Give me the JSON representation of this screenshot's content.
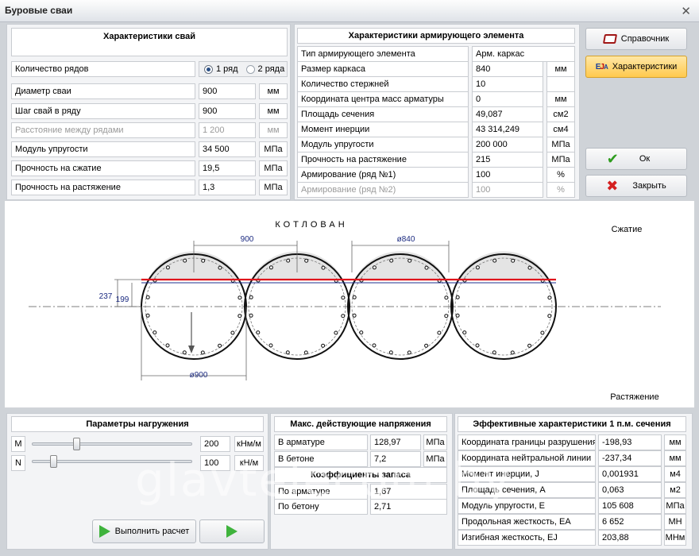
{
  "window": {
    "title": "Буровые сваи"
  },
  "pile": {
    "header": "Характеристики свай",
    "rows_count": {
      "label": "Количество рядов",
      "opt1": "1 ряд",
      "opt2": "2 ряда"
    },
    "diameter": {
      "label": "Диаметр сваи",
      "value": "900",
      "unit": "мм"
    },
    "step": {
      "label": "Шаг свай в ряду",
      "value": "900",
      "unit": "мм"
    },
    "row_distance": {
      "label": "Расстояние между рядами",
      "value": "1 200",
      "unit": "мм"
    },
    "modulus": {
      "label": "Модуль упругости",
      "value": "34 500",
      "unit": "МПа"
    },
    "compression": {
      "label": "Прочность на сжатие",
      "value": "19,5",
      "unit": "МПа"
    },
    "tension": {
      "label": "Прочность на растяжение",
      "value": "1,3",
      "unit": "МПа"
    }
  },
  "rebar": {
    "header": "Характеристики армирующего элемента",
    "type": {
      "label": "Тип армирующего элемента",
      "value": "Арм. каркас"
    },
    "cage_size": {
      "label": "Размер каркаса",
      "value": "840",
      "unit": "мм"
    },
    "bars": {
      "label": "Количество стержней",
      "value": "10",
      "unit": ""
    },
    "centroid": {
      "label": "Координата центра масс арматуры",
      "value": "0",
      "unit": "мм"
    },
    "area": {
      "label": "Площадь сечения",
      "value": "49,087",
      "unit": "см2"
    },
    "inertia": {
      "label": "Момент инерции",
      "value": "43 314,249",
      "unit": "см4"
    },
    "modulus": {
      "label": "Модуль упругости",
      "value": "200 000",
      "unit": "МПа"
    },
    "tension": {
      "label": "Прочность на растяжение",
      "value": "215",
      "unit": "МПа"
    },
    "reinf1": {
      "label": "Армирование (ряд №1)",
      "value": "100",
      "unit": "%"
    },
    "reinf2": {
      "label": "Армирование (ряд №2)",
      "value": "100",
      "unit": "%"
    }
  },
  "buttons": {
    "reference": "Справочник",
    "characteristics": "Характеристики",
    "ok": "Ок",
    "close": "Закрыть",
    "run": "Выполнить расчет"
  },
  "drawing": {
    "title": "КОТЛОВАН",
    "compression": "Сжатие",
    "tension": "Растяжение",
    "dim_step": "900",
    "dim_cage": "ø840",
    "dim_dia": "ø900",
    "dim_237": "237",
    "dim_199": "199"
  },
  "loads": {
    "header": "Параметры нагружения",
    "m": {
      "label": "M",
      "value": "200",
      "unit": "кНм/м",
      "slider": 0.27
    },
    "n": {
      "label": "N",
      "value": "100",
      "unit": "кН/м",
      "slider": 0.12
    }
  },
  "stress": {
    "header": "Макс. действующие напряжения",
    "rebar": {
      "label": "В арматуре",
      "value": "128,97",
      "unit": "МПа"
    },
    "concrete": {
      "label": "В бетоне",
      "value": "7,2",
      "unit": "МПа"
    }
  },
  "safety": {
    "header": "Коэффициенты запаса",
    "rebar": {
      "label": "По арматуре",
      "value": "1,67"
    },
    "concrete": {
      "label": "По бетону",
      "value": "2,71"
    }
  },
  "effective": {
    "header": "Эффективные характеристики 1 п.м. сечения",
    "rows": [
      {
        "label": "Координата границы разрушения",
        "value": "-198,93",
        "unit": "мм"
      },
      {
        "label": "Координата нейтральной линии",
        "value": "-237,34",
        "unit": "мм"
      },
      {
        "label": "Момент инерции, J",
        "value": "0,001931",
        "unit": "м4"
      },
      {
        "label": "Площадь сечения, А",
        "value": "0,063",
        "unit": "м2"
      },
      {
        "label": "Модуль упругости, Е",
        "value": "105 608",
        "unit": "МПа"
      },
      {
        "label": "Продольная жесткость, ЕА",
        "value": "6 652",
        "unit": "МН"
      },
      {
        "label": "Изгибная жесткость, EJ",
        "value": "203,88",
        "unit": "МНм"
      }
    ]
  },
  "watermark": "glavtelecom.by",
  "colors": {
    "accent": "#ffc94d",
    "neutral_line": "#e0141c",
    "ok_check": "#2e9c1e",
    "close_x": "#d42020"
  }
}
